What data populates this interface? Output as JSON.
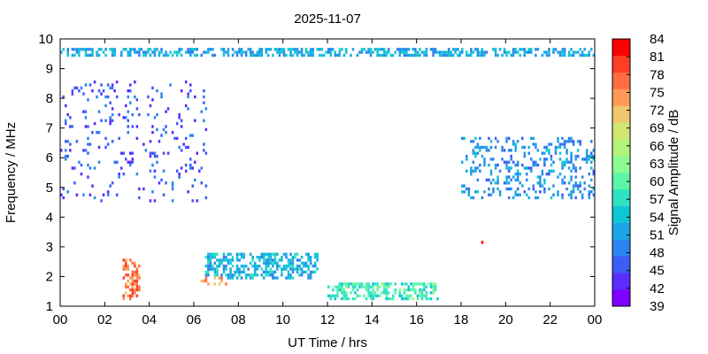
{
  "chart_data": {
    "type": "heatmap",
    "title": "2025-11-07",
    "xlabel": "UT Time / hrs",
    "ylabel": "Frequency / MHz",
    "colorbar_label": "Signal Amplitude / dB",
    "x_range": [
      0,
      24
    ],
    "y_range": [
      1,
      10
    ],
    "x_tick_labels": [
      "00",
      "02",
      "04",
      "06",
      "08",
      "10",
      "12",
      "14",
      "16",
      "18",
      "20",
      "22",
      "00"
    ],
    "y_tick_labels": [
      "1",
      "2",
      "3",
      "4",
      "5",
      "6",
      "7",
      "8",
      "9",
      "10"
    ],
    "colorbar_range": [
      39,
      84
    ],
    "colorbar_ticks": [
      "84",
      "81",
      "78",
      "75",
      "72",
      "69",
      "66",
      "63",
      "60",
      "57",
      "54",
      "51",
      "48",
      "45",
      "42",
      "39"
    ],
    "colorscale": "rainbow",
    "colorbar_colors": [
      "#7f00ff",
      "#5a2cff",
      "#3d5cf6",
      "#2a84ee",
      "#1aa6e4",
      "#0fc6d4",
      "#2ee2c2",
      "#5cf4a9",
      "#8cfc90",
      "#b4f47a",
      "#d2e672",
      "#f0c66e",
      "#ff9a56",
      "#ff6e40",
      "#ff3e26",
      "#ff0000"
    ],
    "grid": false,
    "legend": "colorbar-right",
    "features": [
      {
        "x": [
          0.0,
          24.0
        ],
        "y": [
          9.4,
          9.7
        ],
        "amplitude": 52,
        "density": "dense",
        "note": "9-10 MHz band"
      },
      {
        "x": [
          6.5,
          11.5
        ],
        "y": [
          1.9,
          2.8
        ],
        "amplitude": 53,
        "density": "dense",
        "note": "daytime arc"
      },
      {
        "x": [
          12.0,
          17.0
        ],
        "y": [
          1.2,
          1.8
        ],
        "amplitude": 58,
        "density": "dense"
      },
      {
        "x": [
          2.8,
          3.6
        ],
        "y": [
          1.2,
          2.6
        ],
        "amplitude": 76,
        "density": "dense",
        "note": "burst 03 UT"
      },
      {
        "x": [
          6.2,
          7.5
        ],
        "y": [
          1.7,
          2.0
        ],
        "amplitude": 74,
        "density": "medium"
      },
      {
        "x": [
          18.0,
          24.0
        ],
        "y": [
          4.6,
          6.6
        ],
        "amplitude": 50,
        "density": "medium"
      },
      {
        "x": [
          0.0,
          6.5
        ],
        "y": [
          4.5,
          8.5
        ],
        "amplitude": 46,
        "density": "sparse"
      },
      {
        "x": [
          18.0,
          19.6
        ],
        "y": [
          3.1,
          3.2
        ],
        "amplitude": 84,
        "density": "sparse"
      }
    ]
  }
}
